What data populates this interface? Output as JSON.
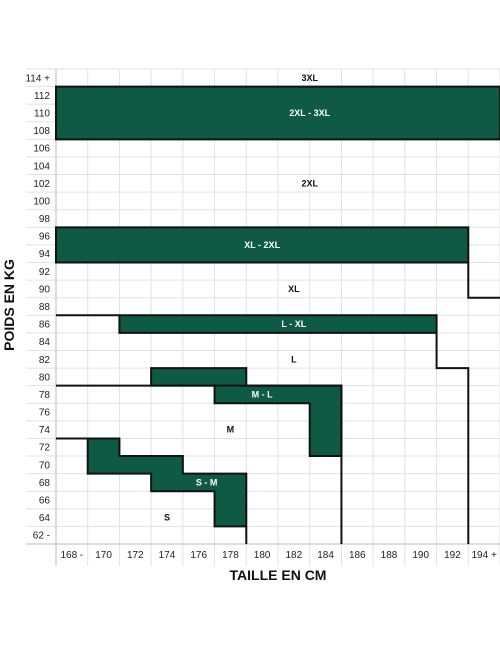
{
  "chart_data": {
    "type": "heatmap",
    "title": "",
    "xlabel": "TAILLE EN CM",
    "ylabel": "POIDS EN KG",
    "x_ticks": [
      "168 -",
      "170",
      "172",
      "174",
      "176",
      "178",
      "180",
      "182",
      "184",
      "186",
      "188",
      "190",
      "192",
      "194 +"
    ],
    "y_ticks": [
      "62 -",
      "64",
      "66",
      "68",
      "70",
      "72",
      "74",
      "76",
      "78",
      "80",
      "82",
      "84",
      "86",
      "88",
      "90",
      "92",
      "94",
      "96",
      "98",
      "100",
      "102",
      "104",
      "106",
      "108",
      "110",
      "112",
      "114 +"
    ],
    "grid": true,
    "colors": {
      "band": "#0f5a45",
      "band_text": "#ffffff",
      "text": "#111111",
      "grid": "#e2e2e2",
      "border": "#111111"
    },
    "zones": [
      {
        "label": "S",
        "x": 174,
        "y": 64,
        "type": "size"
      },
      {
        "label": "S - M",
        "x": 176.5,
        "y": 68,
        "type": "band"
      },
      {
        "label": "M",
        "x": 178,
        "y": 74,
        "type": "size"
      },
      {
        "label": "M - L",
        "x": 180,
        "y": 78,
        "type": "band"
      },
      {
        "label": "L",
        "x": 182,
        "y": 82,
        "type": "size"
      },
      {
        "label": "L - XL",
        "x": 182,
        "y": 86,
        "type": "band"
      },
      {
        "label": "XL",
        "x": 182,
        "y": 90,
        "type": "size"
      },
      {
        "label": "XL - 2XL",
        "x": 180,
        "y": 95,
        "type": "band"
      },
      {
        "label": "2XL",
        "x": 183,
        "y": 102,
        "type": "size"
      },
      {
        "label": "2XL - 3XL",
        "x": 183,
        "y": 110,
        "type": "band"
      },
      {
        "label": "3XL",
        "x": 183,
        "y": 114,
        "type": "size"
      }
    ],
    "band_regions": {
      "S - M": [
        [
          169,
          73
        ],
        [
          171,
          73
        ],
        [
          171,
          71
        ],
        [
          175,
          71
        ],
        [
          175,
          69
        ],
        [
          179,
          69
        ],
        [
          179,
          63
        ],
        [
          177,
          63
        ],
        [
          177,
          67
        ],
        [
          173,
          67
        ],
        [
          173,
          69
        ],
        [
          169,
          69
        ]
      ],
      "M - L": [
        [
          173,
          81
        ],
        [
          179,
          81
        ],
        [
          179,
          79
        ],
        [
          185,
          79
        ],
        [
          185,
          71
        ],
        [
          183,
          71
        ],
        [
          183,
          77
        ],
        [
          177,
          77
        ],
        [
          177,
          79
        ],
        [
          173,
          79
        ]
      ],
      "L - XL": [
        [
          171,
          87
        ],
        [
          191,
          87
        ],
        [
          191,
          85
        ],
        [
          171,
          85
        ]
      ],
      "XL - 2XL": [
        [
          167,
          97
        ],
        [
          193,
          97
        ],
        [
          193,
          93
        ],
        [
          167,
          93
        ]
      ],
      "2XL - 3XL": [
        [
          167,
          113
        ],
        [
          195,
          113
        ],
        [
          195,
          107
        ],
        [
          167,
          107
        ]
      ]
    },
    "boundaries": [
      [
        [
          167,
          73
        ],
        [
          169,
          73
        ]
      ],
      [
        [
          167,
          79
        ],
        [
          185,
          79
        ],
        [
          185,
          61
        ]
      ],
      [
        [
          167,
          87
        ],
        [
          171,
          87
        ]
      ],
      [
        [
          191,
          85
        ],
        [
          191,
          81
        ],
        [
          193,
          81
        ],
        [
          193,
          61
        ]
      ],
      [
        [
          193,
          93
        ],
        [
          193,
          89
        ],
        [
          195,
          89
        ]
      ],
      [
        [
          179,
          63
        ],
        [
          179,
          61
        ]
      ]
    ]
  }
}
